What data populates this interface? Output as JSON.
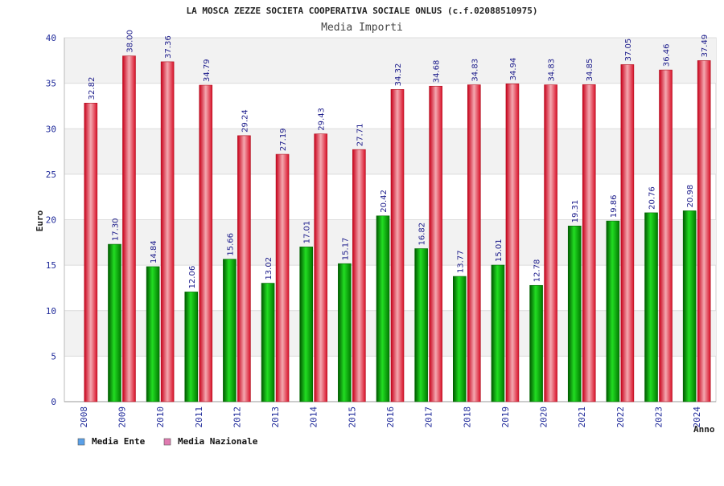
{
  "chart_data": {
    "type": "bar",
    "title": "LA MOSCA ZEZZE SOCIETA COOPERATIVA SOCIALE ONLUS (c.f.02088510975)",
    "subtitle": "Media Importi",
    "xlabel": "Anno",
    "ylabel": "Euro",
    "ylim": [
      0,
      40
    ],
    "yticks": [
      0,
      5,
      10,
      15,
      20,
      25,
      30,
      35,
      40
    ],
    "categories": [
      "2008",
      "2009",
      "2010",
      "2011",
      "2012",
      "2013",
      "2014",
      "2015",
      "2016",
      "2017",
      "2018",
      "2019",
      "2020",
      "2021",
      "2022",
      "2023",
      "2024"
    ],
    "series": [
      {
        "name": "Media Ente",
        "color": "#00aa00",
        "values": [
          null,
          17.3,
          14.84,
          12.06,
          15.66,
          13.02,
          17.01,
          15.17,
          20.42,
          16.82,
          13.77,
          15.01,
          12.78,
          19.31,
          19.86,
          20.76,
          20.98
        ],
        "labels": [
          "",
          "17.30",
          "14.84",
          "12.06",
          "15.66",
          "13.02",
          "17.01",
          "15.17",
          "20.42",
          "16.82",
          "13.77",
          "15.01",
          "12.78",
          "19.31",
          "19.86",
          "20.76",
          "20.98"
        ]
      },
      {
        "name": "Media Nazionale",
        "color": "#ee2233",
        "values": [
          32.82,
          38.0,
          37.36,
          34.79,
          29.24,
          27.19,
          29.43,
          27.71,
          34.32,
          34.68,
          34.83,
          34.94,
          34.83,
          34.85,
          37.05,
          36.46,
          37.49
        ],
        "labels": [
          "32.82",
          "38.00",
          "37.36",
          "34.79",
          "29.24",
          "27.19",
          "29.43",
          "27.71",
          "34.32",
          "34.68",
          "34.83",
          "34.94",
          "34.83",
          "34.85",
          "37.05",
          "36.46",
          "37.49"
        ]
      }
    ],
    "legend": [
      {
        "label": "Media Ente",
        "color": "#5aa0e8"
      },
      {
        "label": "Media Nazionale",
        "color": "#e07ab0"
      }
    ],
    "grid": true,
    "legend_position": "bottom-left"
  }
}
